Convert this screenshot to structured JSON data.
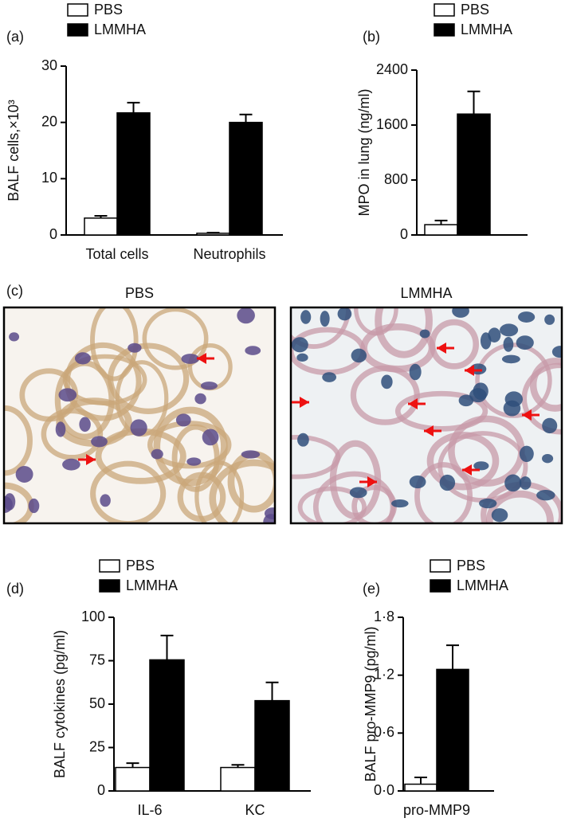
{
  "chart_data": [
    {
      "type": "bar",
      "label": "(a)",
      "ylabel": "BALF cells,×10³",
      "categories": [
        "Total cells",
        "Neutrophils"
      ],
      "series": [
        {
          "name": "PBS",
          "color": "#ffffff",
          "values": [
            3,
            0.3
          ],
          "errors": [
            0.4,
            0.1
          ]
        },
        {
          "name": "LMMHA",
          "color": "#000000",
          "values": [
            21.7,
            20
          ],
          "errors": [
            1.8,
            1.4
          ]
        }
      ],
      "ylim": [
        0,
        30
      ],
      "yticks": [
        0,
        10,
        20,
        30
      ]
    },
    {
      "type": "bar",
      "label": "(b)",
      "ylabel": "MPO in lung (ng/ml)",
      "categories": [
        null
      ],
      "series": [
        {
          "name": "PBS",
          "color": "#ffffff",
          "values": [
            150
          ],
          "errors": [
            60
          ]
        },
        {
          "name": "LMMHA",
          "color": "#000000",
          "values": [
            1760
          ],
          "errors": [
            330
          ]
        }
      ],
      "ylim": [
        0,
        2400
      ],
      "yticks": [
        0,
        800,
        1600,
        2400
      ]
    },
    {
      "type": "bar",
      "label": "(d)",
      "ylabel": "BALF cytokines (pg/ml)",
      "categories": [
        "IL-6",
        "KC"
      ],
      "series": [
        {
          "name": "PBS",
          "color": "#ffffff",
          "values": [
            13.5,
            13.5
          ],
          "errors": [
            2.5,
            1.5
          ]
        },
        {
          "name": "LMMHA",
          "color": "#000000",
          "values": [
            75.5,
            52
          ],
          "errors": [
            14,
            10.5
          ]
        }
      ],
      "ylim": [
        0,
        100
      ],
      "yticks": [
        0,
        25,
        50,
        75,
        100
      ]
    },
    {
      "type": "bar",
      "label": "(e)",
      "ylabel": "BALF pro-MMP9 (pg/ml)",
      "categories": [
        "pro-MMP9"
      ],
      "series": [
        {
          "name": "PBS",
          "color": "#ffffff",
          "values": [
            0.07
          ],
          "errors": [
            0.07
          ]
        },
        {
          "name": "LMMHA",
          "color": "#000000",
          "values": [
            1.26
          ],
          "errors": [
            0.25
          ]
        }
      ],
      "ylim": [
        0,
        1.8
      ],
      "yticks": [
        {
          "value": 0,
          "label": "0·0"
        },
        {
          "value": 0.6,
          "label": "0·6"
        },
        {
          "value": 1.2,
          "label": "1·2"
        },
        {
          "value": 1.8,
          "label": "1·8"
        }
      ]
    }
  ],
  "images": {
    "label": "(c)",
    "panels": [
      {
        "title": "PBS"
      },
      {
        "title": "LMMHA"
      }
    ]
  }
}
